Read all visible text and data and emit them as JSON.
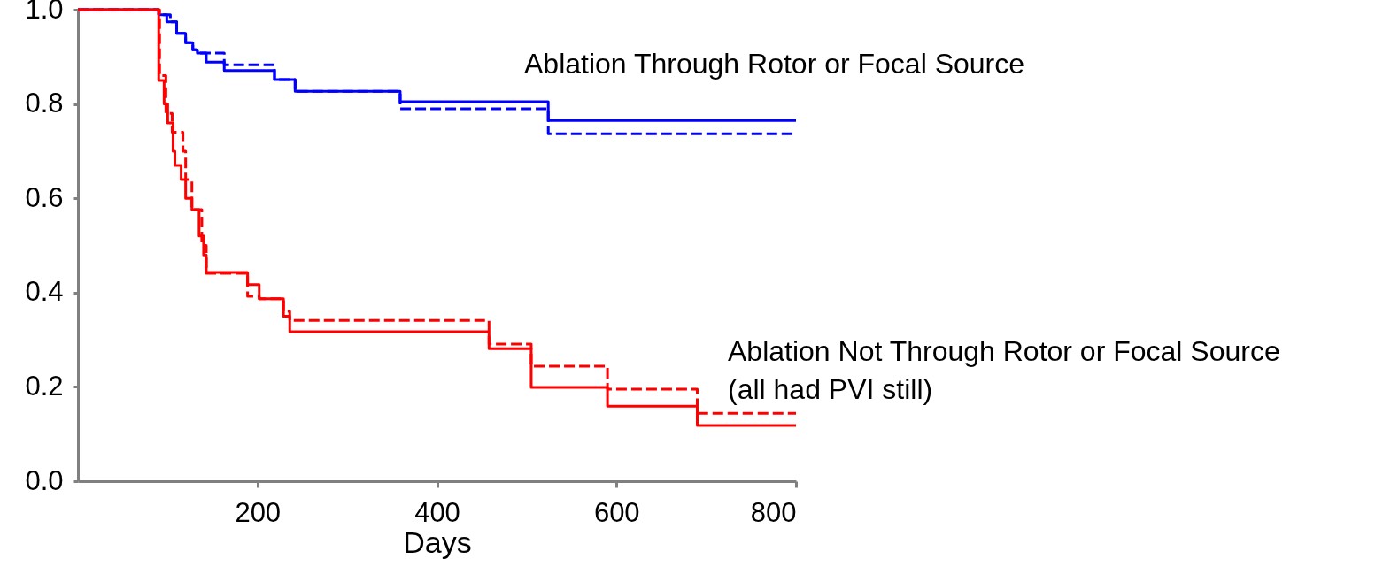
{
  "chart_data": {
    "type": "step",
    "xlabel": "Days",
    "xlim": [
      0,
      800
    ],
    "ylim": [
      0,
      1
    ],
    "xticks": [
      200,
      400,
      600,
      800
    ],
    "yticks": [
      {
        "value": 0,
        "label": "0.0"
      },
      0.2,
      0.4,
      0.6,
      0.8,
      {
        "value": 1,
        "label": "1.0"
      }
    ],
    "grid": false,
    "marker": "none",
    "series": [
      {
        "color": "#0000ff",
        "line_style": "solid",
        "x": [
          0,
          90,
          99,
          110,
          120,
          128,
          133,
          143,
          163,
          219,
          242,
          359,
          524,
          800
        ],
        "values": [
          1,
          0.989,
          0.974,
          0.95,
          0.93,
          0.915,
          0.908,
          0.889,
          0.871,
          0.852,
          0.827,
          0.805,
          0.765,
          0.765
        ]
      },
      {
        "color": "#0000ff",
        "line_style": "dashed",
        "x": [
          0,
          90,
          103,
          110,
          120,
          128,
          133,
          163,
          219,
          242,
          359,
          524,
          800
        ],
        "values": [
          1,
          0.989,
          0.974,
          0.95,
          0.93,
          0.915,
          0.908,
          0.883,
          0.852,
          0.827,
          0.79,
          0.737,
          0.737
        ]
      },
      {
        "color": "#ff0000",
        "line_style": "solid",
        "x": [
          0,
          90,
          96,
          100,
          106,
          108,
          115,
          120,
          127,
          135,
          140,
          143,
          189,
          202,
          229,
          236,
          458,
          505,
          590,
          690,
          800
        ],
        "values": [
          1,
          0.85,
          0.8,
          0.76,
          0.7,
          0.67,
          0.64,
          0.6,
          0.576,
          0.52,
          0.48,
          0.443,
          0.417,
          0.387,
          0.35,
          0.317,
          0.281,
          0.199,
          0.159,
          0.118,
          0.118
        ]
      },
      {
        "color": "#ff0000",
        "line_style": "dashed",
        "x": [
          0,
          91,
          98,
          105,
          117,
          120,
          127,
          138,
          143,
          189,
          202,
          229,
          236,
          458,
          505,
          590,
          690,
          800
        ],
        "values": [
          1,
          0.86,
          0.78,
          0.74,
          0.7,
          0.64,
          0.576,
          0.5,
          0.441,
          0.392,
          0.387,
          0.36,
          0.341,
          0.291,
          0.244,
          0.195,
          0.144,
          0.144
        ]
      }
    ],
    "annotations": [
      "Ablation Through Rotor or Focal Source",
      "Ablation Not Through Rotor or Focal Source",
      "(all had PVI still)"
    ]
  }
}
